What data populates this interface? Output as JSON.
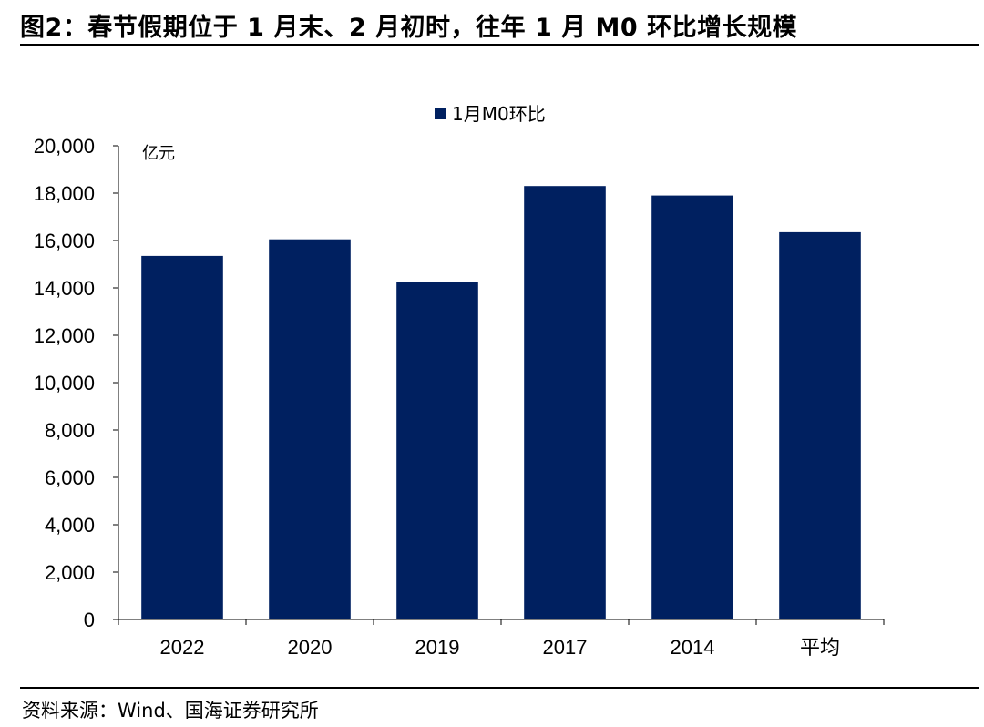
{
  "header": {
    "title": "图2：春节假期位于 1 月末、2 月初时，往年 1 月 M0 环比增长规模"
  },
  "footer": {
    "source": "资料来源：Wind、国海证券研究所"
  },
  "chart_data": {
    "type": "bar",
    "categories": [
      "2022",
      "2020",
      "2019",
      "2017",
      "2014",
      "平均"
    ],
    "series": [
      {
        "name": "1月M0环比",
        "values": [
          15350,
          16050,
          14250,
          18300,
          17900,
          16350
        ],
        "color": "#002060"
      }
    ],
    "unit_label": "亿元",
    "ylim": [
      0,
      20000
    ],
    "yticks": [
      0,
      2000,
      4000,
      6000,
      8000,
      10000,
      12000,
      14000,
      16000,
      18000,
      20000
    ],
    "ytick_labels": [
      "0",
      "2,000",
      "4,000",
      "6,000",
      "8,000",
      "10,000",
      "12,000",
      "14,000",
      "16,000",
      "18,000",
      "20,000"
    ],
    "legend_position": "top-center",
    "grid": false
  }
}
